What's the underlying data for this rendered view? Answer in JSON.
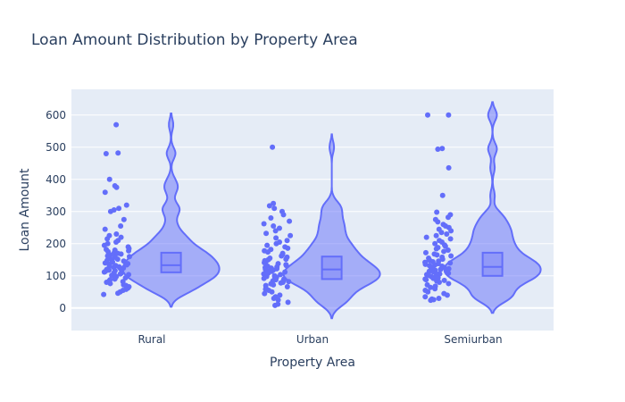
{
  "chart_data": {
    "type": "violin",
    "title": "Loan Amount Distribution by Property Area",
    "xlabel": "Property Area",
    "ylabel": "Loan Amount",
    "ylim": [
      -70,
      680
    ],
    "yticks": [
      0,
      100,
      200,
      300,
      400,
      500,
      600
    ],
    "categories": [
      "Rural",
      "Urban",
      "Semiurban"
    ],
    "grid": true,
    "colors": {
      "plot_bg": "#e5ecf6",
      "grid": "#ffffff",
      "trace": "#636efa",
      "fill": "#636efa",
      "box": "#8c93f8",
      "text": "#2a3f5f"
    },
    "series": [
      {
        "category": "Rural",
        "min": 4,
        "q1": 111,
        "median": 133,
        "q3": 172,
        "max": 605,
        "points": [
          570,
          482,
          480,
          400,
          380,
          375,
          360,
          320,
          310,
          305,
          300,
          275,
          255,
          245,
          230,
          225,
          220,
          215,
          210,
          205,
          200,
          195,
          190,
          185,
          182,
          180,
          178,
          175,
          172,
          170,
          168,
          165,
          162,
          160,
          158,
          155,
          152,
          150,
          148,
          146,
          144,
          142,
          140,
          138,
          136,
          134,
          132,
          130,
          128,
          126,
          124,
          122,
          120,
          118,
          116,
          114,
          112,
          110,
          108,
          106,
          104,
          102,
          100,
          98,
          96,
          94,
          92,
          90,
          88,
          85,
          82,
          80,
          76,
          72,
          70,
          66,
          62,
          58,
          55,
          50,
          46,
          42
        ]
      },
      {
        "category": "Urban",
        "min": -32,
        "q1": 90,
        "median": 120,
        "q3": 160,
        "max": 540,
        "points": [
          500,
          325,
          318,
          310,
          300,
          290,
          280,
          270,
          262,
          255,
          248,
          240,
          232,
          225,
          218,
          210,
          205,
          200,
          195,
          190,
          186,
          182,
          178,
          174,
          170,
          166,
          162,
          158,
          155,
          152,
          150,
          147,
          144,
          141,
          138,
          135,
          132,
          130,
          128,
          126,
          124,
          122,
          120,
          118,
          116,
          114,
          112,
          110,
          108,
          106,
          104,
          102,
          100,
          98,
          96,
          94,
          92,
          90,
          88,
          86,
          84,
          82,
          80,
          78,
          75,
          72,
          70,
          66,
          62,
          58,
          55,
          50,
          45,
          40,
          35,
          30,
          25,
          18,
          12,
          8
        ]
      },
      {
        "category": "Semiurban",
        "min": -15,
        "q1": 100,
        "median": 128,
        "q3": 172,
        "max": 640,
        "points": [
          600,
          600,
          496,
          494,
          436,
          350,
          298,
          290,
          282,
          275,
          268,
          260,
          255,
          250,
          245,
          240,
          235,
          230,
          225,
          220,
          215,
          210,
          205,
          200,
          196,
          192,
          188,
          184,
          180,
          176,
          172,
          168,
          165,
          162,
          158,
          155,
          152,
          150,
          148,
          146,
          144,
          142,
          140,
          138,
          136,
          134,
          132,
          130,
          128,
          126,
          124,
          122,
          120,
          118,
          116,
          114,
          112,
          110,
          108,
          106,
          104,
          102,
          100,
          98,
          96,
          94,
          92,
          90,
          88,
          86,
          84,
          80,
          76,
          72,
          68,
          64,
          60,
          55,
          50,
          45,
          40,
          35,
          30,
          28,
          26,
          24
        ]
      }
    ]
  }
}
